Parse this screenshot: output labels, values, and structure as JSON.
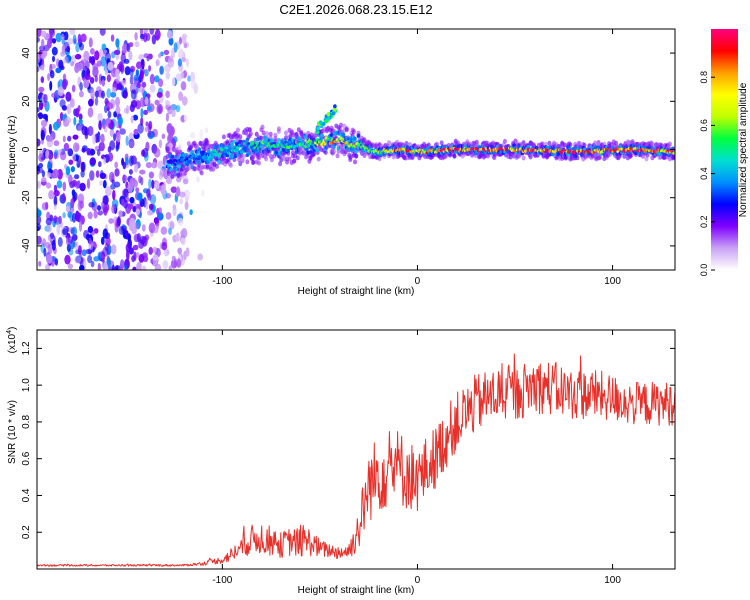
{
  "figure": {
    "title": "C2E1.2026.068.23.15.E12"
  },
  "chart_data": [
    {
      "type": "heatmap",
      "title": "C2E1.2026.068.23.15.E12",
      "xlabel": "Height of straight line (km)",
      "ylabel": "Frequency (Hz)",
      "xlim": [
        -195,
        132
      ],
      "ylim": [
        -50,
        50
      ],
      "xticks": [
        -100,
        0,
        100
      ],
      "yticks": [
        -40,
        -20,
        0,
        20,
        40
      ],
      "grid": false,
      "colorbar": {
        "label": "Normalized spectral amplitude",
        "range": [
          0,
          1
        ],
        "ticks": [
          "0.0",
          "0.2",
          "0.4",
          "0.6",
          "0.8"
        ],
        "tick_values": [
          0,
          0.2,
          0.4,
          0.6,
          0.8
        ],
        "colors": [
          "#ffffff",
          "#c9a2f5",
          "#8000ff",
          "#0000ff",
          "#0090ff",
          "#00e0d0",
          "#00ff40",
          "#c0ff00",
          "#ffff00",
          "#ffa000",
          "#ff0000",
          "#ff0080"
        ]
      },
      "noise_region": {
        "x_from": -195,
        "x_to": -118,
        "amplitude": 0.2
      },
      "ridge": {
        "description": "frequency centre (Hz) vs height (km)",
        "x": [
          -128,
          -120,
          -110,
          -100,
          -90,
          -80,
          -70,
          -60,
          -50,
          -42,
          -35,
          -30,
          -25,
          -20,
          -10,
          0,
          20,
          50,
          80,
          110,
          132
        ],
        "freq": [
          -6,
          -5,
          -3,
          -1,
          1,
          2,
          1,
          2,
          3,
          4,
          3,
          2,
          0,
          -1,
          0,
          -1,
          0,
          0,
          -1,
          0,
          -1
        ],
        "amplitude": [
          0.2,
          0.3,
          0.35,
          0.45,
          0.4,
          0.5,
          0.45,
          0.5,
          0.55,
          0.75,
          0.7,
          0.6,
          0.5,
          0.6,
          0.8,
          0.75,
          0.85,
          0.9,
          0.85,
          0.9,
          0.8
        ]
      },
      "spur": {
        "x_from": -52,
        "x_to": -42,
        "freq_from": 8,
        "freq_to": 17,
        "amplitude": 0.5
      }
    },
    {
      "type": "line",
      "xlabel": "Height of straight line (km)",
      "ylabel": "SNR (10 * v/v)",
      "y_multiplier_label": "(x10",
      "y_multiplier_exponent": "4",
      "xlim": [
        -195,
        132
      ],
      "ylim": [
        0,
        1.3
      ],
      "xticks": [
        -100,
        0,
        100
      ],
      "yticks": [
        "0.2",
        "0.4",
        "0.6",
        "0.8",
        "1.0",
        "1.2"
      ],
      "ytick_values": [
        0.2,
        0.4,
        0.6,
        0.8,
        1.0,
        1.2
      ],
      "grid": false,
      "series": [
        {
          "name": "SNR",
          "color": "#e8302a",
          "x": [
            -195,
            -180,
            -160,
            -140,
            -120,
            -110,
            -100,
            -95,
            -90,
            -85,
            -80,
            -75,
            -70,
            -65,
            -60,
            -55,
            -50,
            -45,
            -40,
            -35,
            -30,
            -25,
            -20,
            -15,
            -10,
            -5,
            0,
            5,
            10,
            15,
            20,
            25,
            30,
            40,
            50,
            60,
            70,
            80,
            90,
            100,
            110,
            120,
            132
          ],
          "values": [
            0.02,
            0.02,
            0.02,
            0.02,
            0.02,
            0.03,
            0.05,
            0.08,
            0.12,
            0.16,
            0.17,
            0.15,
            0.13,
            0.15,
            0.14,
            0.15,
            0.11,
            0.1,
            0.09,
            0.1,
            0.22,
            0.45,
            0.52,
            0.55,
            0.55,
            0.52,
            0.48,
            0.55,
            0.62,
            0.72,
            0.8,
            0.85,
            0.9,
            0.95,
            0.95,
            1.0,
            0.98,
            0.95,
            0.95,
            0.93,
            0.9,
            0.9,
            0.9
          ],
          "noise": [
            0.005,
            0.005,
            0.005,
            0.005,
            0.005,
            0.01,
            0.02,
            0.04,
            0.06,
            0.08,
            0.09,
            0.08,
            0.07,
            0.08,
            0.08,
            0.08,
            0.05,
            0.04,
            0.04,
            0.05,
            0.12,
            0.2,
            0.22,
            0.22,
            0.22,
            0.2,
            0.18,
            0.18,
            0.17,
            0.17,
            0.16,
            0.16,
            0.16,
            0.15,
            0.15,
            0.15,
            0.15,
            0.14,
            0.14,
            0.13,
            0.12,
            0.12,
            0.12
          ]
        }
      ]
    }
  ]
}
